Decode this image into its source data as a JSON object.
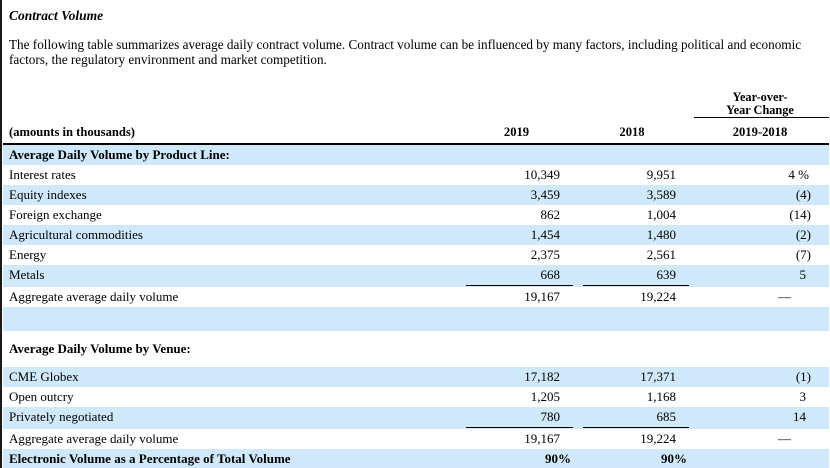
{
  "page": {
    "title": "Contract Volume",
    "body": "The following table summarizes average daily contract volume. Contract volume can be influenced by many factors, including political and economic factors, the regulatory environment and market competition."
  },
  "colors": {
    "row_shade": "#cfe9fa",
    "text": "#000000",
    "rules": "#000000"
  },
  "table": {
    "units_label": "(amounts in thousands)",
    "change_header_line1": "Year-over-",
    "change_header_line2": "Year Change",
    "col_2019": "2019",
    "col_2018": "2018",
    "col_change": "2019-2018",
    "rows": [
      {
        "label": "Average Daily Volume by Product Line:",
        "v2019": "",
        "v2018": "",
        "change": "",
        "shade": true,
        "bold": true
      },
      {
        "label": "Interest rates",
        "v2019": "10,349",
        "v2018": "9,951",
        "change": "4 %",
        "shade": false,
        "bold": false
      },
      {
        "label": "Equity indexes",
        "v2019": "3,459",
        "v2018": "3,589",
        "change": "(4)",
        "shade": true,
        "bold": false
      },
      {
        "label": "Foreign exchange",
        "v2019": "862",
        "v2018": "1,004",
        "change": "(14)",
        "shade": false,
        "bold": false
      },
      {
        "label": "Agricultural commodities",
        "v2019": "1,454",
        "v2018": "1,480",
        "change": "(2)",
        "shade": true,
        "bold": false
      },
      {
        "label": "Energy",
        "v2019": "2,375",
        "v2018": "2,561",
        "change": "(7)",
        "shade": false,
        "bold": false
      },
      {
        "label": "Metals",
        "v2019": "668",
        "v2018": "639",
        "change": "5",
        "shade": true,
        "bold": false,
        "rule": true
      },
      {
        "label": "Aggregate average daily volume",
        "v2019": "19,167",
        "v2018": "19,224",
        "change": "—",
        "shade": false,
        "bold": false
      },
      {
        "label": "",
        "v2019": "",
        "v2018": "",
        "change": "",
        "shade": true,
        "bold": false,
        "blank": true
      },
      {
        "label": "Average Daily Volume by Venue:",
        "v2019": "",
        "v2018": "",
        "change": "",
        "shade": false,
        "bold": true,
        "tall": true
      },
      {
        "label": "CME Globex",
        "v2019": "17,182",
        "v2018": "17,371",
        "change": "(1)",
        "shade": true,
        "bold": false
      },
      {
        "label": "Open outcry",
        "v2019": "1,205",
        "v2018": "1,168",
        "change": "3",
        "shade": false,
        "bold": false
      },
      {
        "label": "Privately negotiated",
        "v2019": "780",
        "v2018": "685",
        "change": "14",
        "shade": true,
        "bold": false,
        "rule": true
      },
      {
        "label": "Aggregate average daily volume",
        "v2019": "19,167",
        "v2018": "19,224",
        "change": "—",
        "shade": false,
        "bold": false
      },
      {
        "label": "Electronic Volume as a Percentage of Total Volume",
        "v2019": "90%",
        "v2018": "90%",
        "change": "",
        "shade": true,
        "bold": true
      }
    ]
  }
}
